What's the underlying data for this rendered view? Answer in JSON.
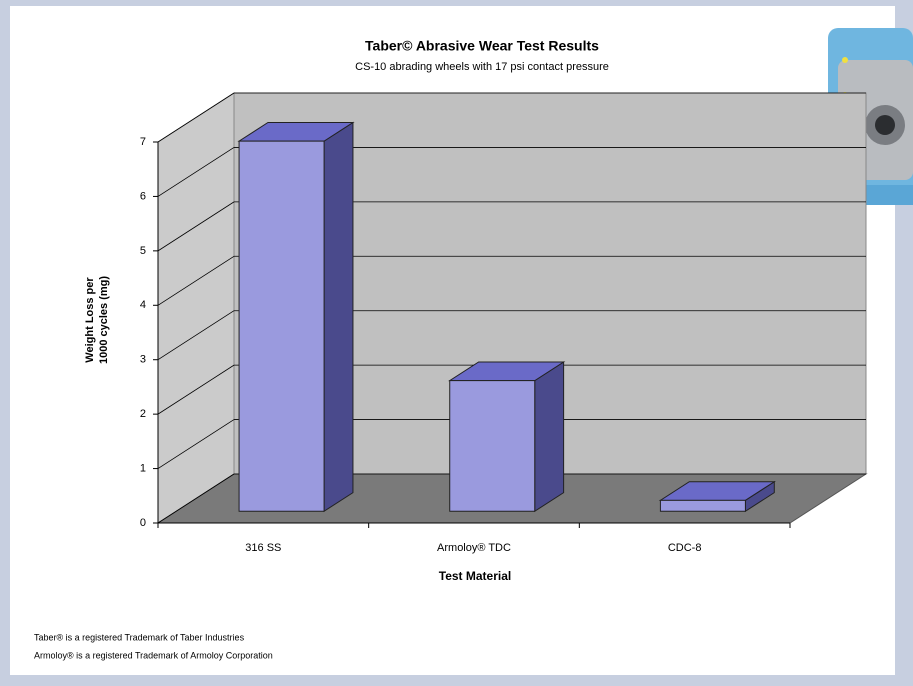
{
  "chart_data": {
    "type": "bar3d",
    "title": "Taber© Abrasive Wear Test Results",
    "subtitle": "CS-10 abrading wheels with 17 psi contact pressure",
    "categories": [
      "316 SS",
      "Armoloy® TDC",
      "CDC-8"
    ],
    "values": [
      6.8,
      2.4,
      0.2
    ],
    "color": "#9a9ade",
    "ylim": [
      0,
      7
    ],
    "yticks": [
      0,
      1,
      2,
      3,
      4,
      5,
      6,
      7
    ],
    "grid": true,
    "ylabel": [
      "Weight Loss per",
      "1000 cycles (mg)"
    ],
    "xlabel": "Test Material"
  },
  "footnotes": [
    "Taber® is a registered Trademark of Taber Industries",
    "Armoloy® is a registered Trademark of Armoloy Corporation"
  ]
}
